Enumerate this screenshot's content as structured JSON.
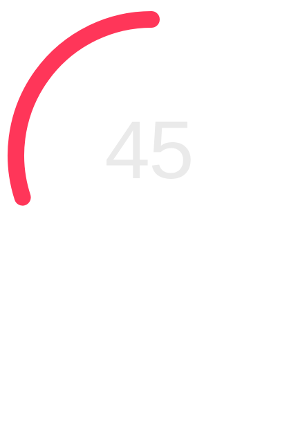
{
  "progress": {
    "value": "45",
    "fraction": 0.3,
    "color": "#ff3659",
    "text_color": "#eaeaea"
  }
}
